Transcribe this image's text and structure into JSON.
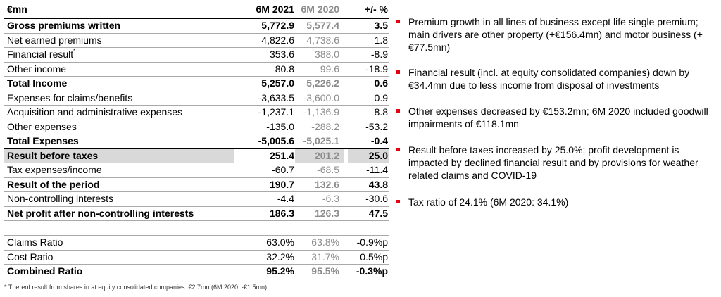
{
  "table": {
    "header": {
      "label": "€mn",
      "col1": "6M 2021",
      "col2": "6M 2020",
      "col3": "+/- %"
    },
    "rows": [
      {
        "label": "Gross premiums written",
        "v1": "5,772.9",
        "v2": "5,577.4",
        "v3": "3.5",
        "bold": true
      },
      {
        "label": "Net earned premiums",
        "v1": "4,822.6",
        "v2": "4,738.6",
        "v3": "1.8"
      },
      {
        "label": "Financial result",
        "sup": "*",
        "v1": "353.6",
        "v2": "388.0",
        "v3": "-8.9"
      },
      {
        "label": "Other income",
        "v1": "80.8",
        "v2": "99.6",
        "v3": "-18.9"
      },
      {
        "label": "Total Income",
        "v1": "5,257.0",
        "v2": "5,226.2",
        "v3": "0.6",
        "bold": true
      },
      {
        "label": "Expenses for claims/benefits",
        "v1": "-3,633.5",
        "v2": "-3,600.0",
        "v3": "0.9"
      },
      {
        "label": "Acquisition and administrative expenses",
        "v1": "-1,237.1",
        "v2": "-1,136.9",
        "v3": "8.8"
      },
      {
        "label": "Other expenses",
        "v1": "-135.0",
        "v2": "-288.2",
        "v3": "-53.2"
      },
      {
        "label": "Total Expenses",
        "v1": "-5,005.6",
        "v2": "-5,025.1",
        "v3": "-0.4",
        "bold": true,
        "total": true
      },
      {
        "label": "Result before taxes",
        "v1": "251.4",
        "v2": "201.2",
        "v3": "25.0",
        "bold": true,
        "shade": true
      },
      {
        "label": "Tax expenses/income",
        "v1": "-60.7",
        "v2": "-68.5",
        "v3": "-11.4"
      },
      {
        "label": "Result of the period",
        "v1": "190.7",
        "v2": "132.6",
        "v3": "43.8",
        "bold": true
      },
      {
        "label": "Non-controlling interests",
        "v1": "-4.4",
        "v2": "-6.3",
        "v3": "-30.6"
      },
      {
        "label": "Net profit after non-controlling interests",
        "v1": "186.3",
        "v2": "126.3",
        "v3": "47.5",
        "bold": true
      }
    ],
    "ratios": [
      {
        "label": "Claims Ratio",
        "v1": "63.0%",
        "v2": "63.8%",
        "v3": "-0.9%p"
      },
      {
        "label": "Cost Ratio",
        "v1": "32.2%",
        "v2": "31.7%",
        "v3": "0.5%p"
      },
      {
        "label": "Combined Ratio",
        "v1": "95.2%",
        "v2": "95.5%",
        "v3": "-0.3%p",
        "bold": true
      }
    ]
  },
  "footnote": "* Thereof result from shares in at equity consolidated companies: €2.7mn (6M 2020: -€1.5mn)",
  "bullets": [
    "Premium growth in all lines of business except life single premium; main drivers are other property (+€156.4mn) and motor business (+€77.5mn)",
    "Financial result (incl. at equity consolidated companies) down by €34.4mn due to less income from disposal of investments",
    "Other expenses decreased by €153.2mn; 6M 2020 included goodwill impairments of €118.1mn",
    "Result before taxes increased by 25.0%; profit development is impacted by declined financial result and by provisions for weather related claims and COVID-19",
    "Tax ratio of 24.1% (6M 2020: 34.1%)"
  ],
  "colors": {
    "bullet_accent": "#e3000f",
    "prior_year_text": "#8c8c8c",
    "highlight_row": "#d9d9d9"
  }
}
